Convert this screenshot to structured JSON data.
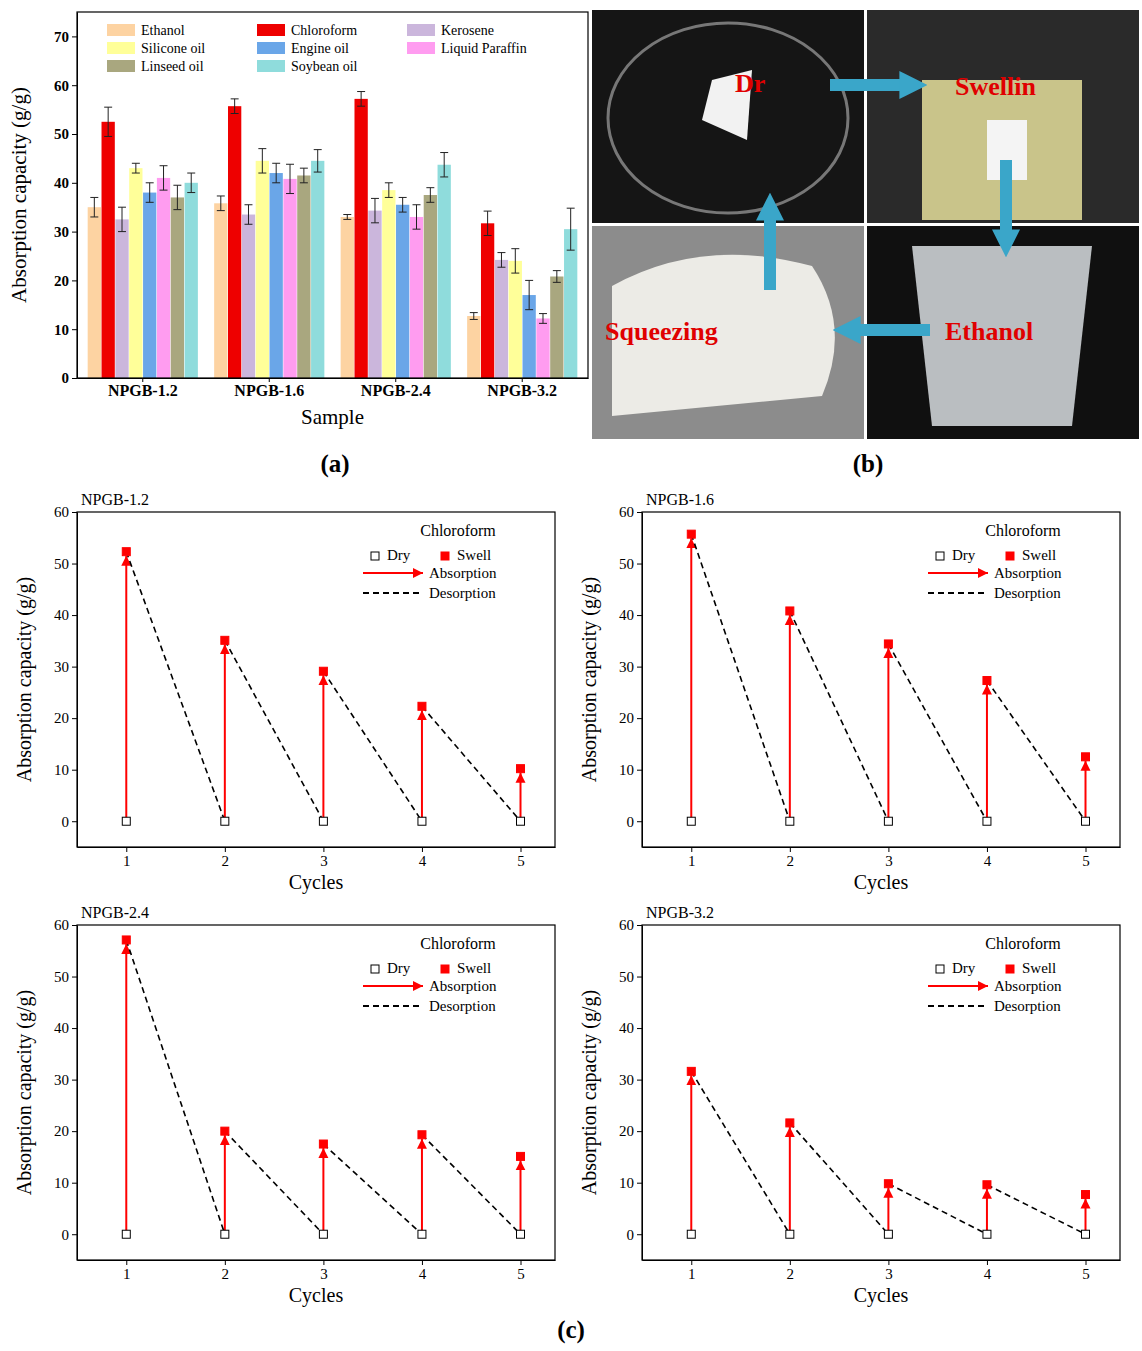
{
  "chart_data": [
    {
      "type": "bar",
      "categories": [
        "NPGB-1.2",
        "NPGB-1.6",
        "NPGB-2.4",
        "NPGB-3.2"
      ],
      "xlabel": "Sample",
      "ylabel": "Absorption capacity (g/g)",
      "ylim": [
        0,
        75
      ],
      "yticks": [
        0,
        10,
        20,
        30,
        40,
        50,
        60,
        70
      ],
      "legend": "top",
      "series": [
        {
          "name": "Ethanol",
          "color": "#fdd3a2",
          "values": [
            35,
            35.8,
            33,
            12.7
          ],
          "errors": [
            2,
            1.5,
            0.5,
            0.7
          ]
        },
        {
          "name": "Chloroform",
          "color": "#ee0000",
          "values": [
            52.5,
            55.7,
            57.2,
            31.7
          ],
          "errors": [
            3,
            1.5,
            1.5,
            2.5
          ]
        },
        {
          "name": "Kerosene",
          "color": "#cbb6dc",
          "values": [
            32.5,
            33.5,
            34.3,
            24.2
          ],
          "errors": [
            2.5,
            2,
            2.5,
            1.5
          ]
        },
        {
          "name": "Silicone oil",
          "color": "#ffff99",
          "values": [
            43,
            44.5,
            38.5,
            24
          ],
          "errors": [
            1,
            2.5,
            1.5,
            2.5
          ]
        },
        {
          "name": "Engine oil",
          "color": "#6aa6e8",
          "values": [
            38,
            42,
            35.5,
            17
          ],
          "errors": [
            2,
            2,
            1.5,
            3
          ]
        },
        {
          "name": "Liquid Paraffin",
          "color": "#ff9cf0",
          "values": [
            41,
            40.8,
            33,
            12.2
          ],
          "errors": [
            2.5,
            3,
            2.5,
            1
          ]
        },
        {
          "name": "Linseed oil",
          "color": "#a9a77f",
          "values": [
            37,
            41.5,
            37.5,
            20.8
          ],
          "errors": [
            2.5,
            1.5,
            1.5,
            1.2
          ]
        },
        {
          "name": "Soybean oil",
          "color": "#8fdcdc",
          "values": [
            40,
            44.5,
            43.7,
            30.5
          ],
          "errors": [
            2,
            2.3,
            2.5,
            4.3
          ]
        }
      ]
    },
    {
      "type": "scatter",
      "title": "NPGB-1.2",
      "subtitle": "Chloroform",
      "xlabel": "Cycles",
      "ylabel": "Absorption capacity (g/g)",
      "x": [
        1,
        2,
        3,
        4,
        5
      ],
      "xlim": [
        0.5,
        5.35
      ],
      "xticks": [
        1,
        2,
        3,
        4,
        5
      ],
      "ylim": [
        -5,
        60
      ],
      "yticks": [
        0,
        10,
        20,
        30,
        40,
        50,
        60
      ],
      "series": [
        {
          "name": "Dry",
          "color": "#000000",
          "marker": "square-open",
          "values": [
            0,
            0,
            0,
            0,
            0
          ]
        },
        {
          "name": "Swell",
          "color": "#ff0000",
          "marker": "square",
          "values": [
            52.3,
            35.1,
            29.1,
            22.3,
            10.2
          ]
        },
        {
          "name": "Absorption",
          "type": "arrow",
          "color": "#ff0000",
          "line_style": "solid"
        },
        {
          "name": "Desorption",
          "type": "line",
          "color": "#000000",
          "line_style": "dashed"
        }
      ]
    },
    {
      "type": "scatter",
      "title": "NPGB-1.6",
      "subtitle": "Chloroform",
      "xlabel": "Cycles",
      "ylabel": "Absorption capacity (g/g)",
      "x": [
        1,
        2,
        3,
        4,
        5
      ],
      "xlim": [
        0.5,
        5.35
      ],
      "xticks": [
        1,
        2,
        3,
        4,
        5
      ],
      "ylim": [
        -5,
        60
      ],
      "yticks": [
        0,
        10,
        20,
        30,
        40,
        50,
        60
      ],
      "series": [
        {
          "name": "Dry",
          "color": "#000000",
          "marker": "square-open",
          "values": [
            0,
            0,
            0,
            0,
            0
          ]
        },
        {
          "name": "Swell",
          "color": "#ff0000",
          "marker": "square",
          "values": [
            55.7,
            40.8,
            34.4,
            27.3,
            12.5
          ]
        },
        {
          "name": "Absorption",
          "type": "arrow",
          "color": "#ff0000",
          "line_style": "solid"
        },
        {
          "name": "Desorption",
          "type": "line",
          "color": "#000000",
          "line_style": "dashed"
        }
      ]
    },
    {
      "type": "scatter",
      "title": "NPGB-2.4",
      "subtitle": "Chloroform",
      "xlabel": "Cycles",
      "ylabel": "Absorption capacity (g/g)",
      "x": [
        1,
        2,
        3,
        4,
        5
      ],
      "xlim": [
        0.5,
        5.35
      ],
      "xticks": [
        1,
        2,
        3,
        4,
        5
      ],
      "ylim": [
        -5,
        60
      ],
      "yticks": [
        0,
        10,
        20,
        30,
        40,
        50,
        60
      ],
      "series": [
        {
          "name": "Dry",
          "color": "#000000",
          "marker": "square-open",
          "values": [
            0,
            0,
            0,
            0,
            0
          ]
        },
        {
          "name": "Swell",
          "color": "#ff0000",
          "marker": "square",
          "values": [
            57.1,
            20,
            17.5,
            19.3,
            15.1
          ]
        },
        {
          "name": "Absorption",
          "type": "arrow",
          "color": "#ff0000",
          "line_style": "solid"
        },
        {
          "name": "Desorption",
          "type": "line",
          "color": "#000000",
          "line_style": "dashed"
        }
      ]
    },
    {
      "type": "scatter",
      "title": "NPGB-3.2",
      "subtitle": "Chloroform",
      "xlabel": "Cycles",
      "ylabel": "Absorption capacity (g/g)",
      "x": [
        1,
        2,
        3,
        4,
        5
      ],
      "xlim": [
        0.5,
        5.35
      ],
      "xticks": [
        1,
        2,
        3,
        4,
        5
      ],
      "ylim": [
        -5,
        60
      ],
      "yticks": [
        0,
        10,
        20,
        30,
        40,
        50,
        60
      ],
      "series": [
        {
          "name": "Dry",
          "color": "#000000",
          "marker": "square-open",
          "values": [
            0,
            0,
            0,
            0,
            0
          ]
        },
        {
          "name": "Swell",
          "color": "#ff0000",
          "marker": "square",
          "values": [
            31.6,
            21.6,
            9.8,
            9.6,
            7.7
          ]
        },
        {
          "name": "Absorption",
          "type": "arrow",
          "color": "#ff0000",
          "line_style": "solid"
        },
        {
          "name": "Desorption",
          "type": "line",
          "color": "#000000",
          "line_style": "dashed"
        }
      ]
    }
  ],
  "photo_panel": {
    "steps": [
      "Dr",
      "Swellin",
      "Ethanol",
      "Squeezing"
    ]
  },
  "panel_labels": [
    "(a)",
    "(b)",
    "(c)"
  ]
}
